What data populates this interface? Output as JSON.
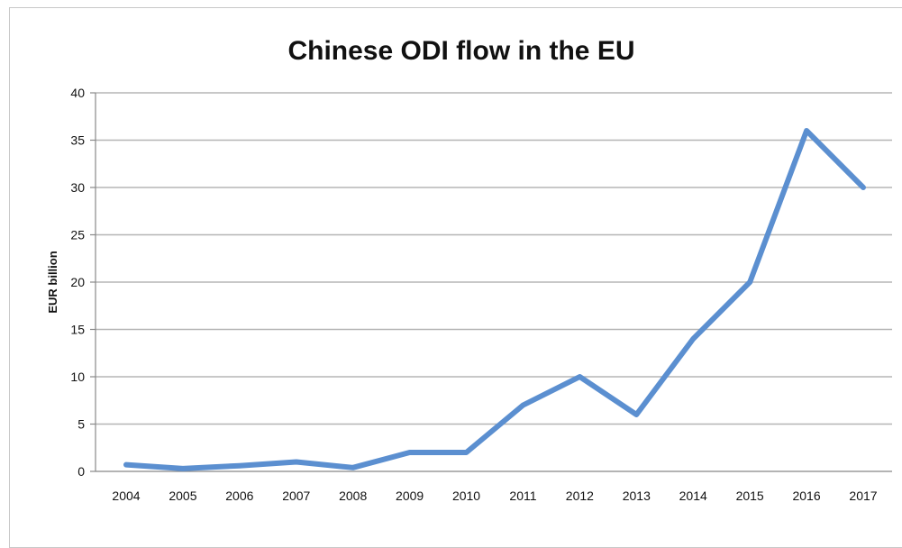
{
  "chart_data": {
    "type": "line",
    "title": "Chinese ODI flow in the EU",
    "xlabel": "",
    "ylabel": "EUR billion",
    "categories": [
      "2004",
      "2005",
      "2006",
      "2007",
      "2008",
      "2009",
      "2010",
      "2011",
      "2012",
      "2013",
      "2014",
      "2015",
      "2016",
      "2017"
    ],
    "series": [
      {
        "values": [
          0.7,
          0.3,
          0.6,
          1.0,
          0.4,
          2.0,
          2.0,
          7.0,
          10.0,
          6.0,
          14.0,
          20.0,
          36.0,
          30.0
        ],
        "color": "#5b8fd0"
      }
    ],
    "ylim": [
      0,
      40
    ],
    "yticks": [
      0,
      5,
      10,
      15,
      20,
      25,
      30,
      35,
      40
    ],
    "grid": true,
    "legend": "none"
  }
}
